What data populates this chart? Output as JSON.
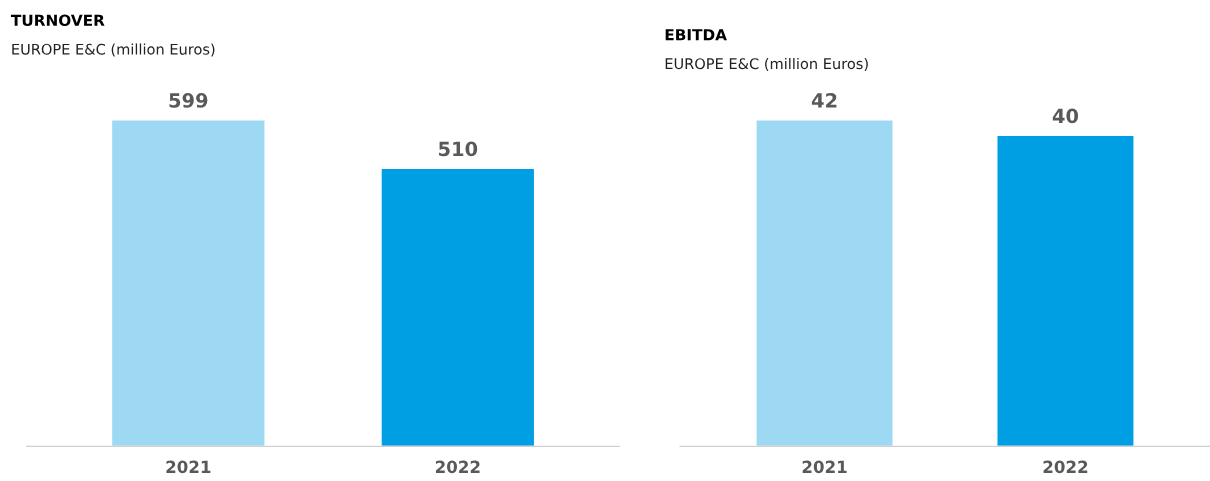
{
  "chart_data": [
    {
      "type": "bar",
      "title": "TURNOVER",
      "subtitle": "EUROPE E&C (million Euros)",
      "categories": [
        "2021",
        "2022"
      ],
      "values": [
        599,
        510
      ],
      "colors": [
        "#9dd9f3",
        "#009fe3"
      ],
      "data_labels": true,
      "tick_labels": "x",
      "grid": false
    },
    {
      "type": "bar",
      "title": "EBITDA",
      "subtitle": "EUROPE E&C (million Euros)",
      "categories": [
        "2021",
        "2022"
      ],
      "values": [
        42,
        40
      ],
      "colors": [
        "#9dd9f3",
        "#009fe3"
      ],
      "data_labels": true,
      "tick_labels": "x",
      "grid": false
    }
  ]
}
